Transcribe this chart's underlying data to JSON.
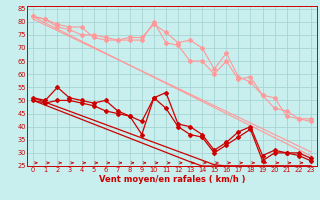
{
  "xlabel": "Vent moyen/en rafales ( km/h )",
  "xlim": [
    -0.5,
    23.5
  ],
  "ylim": [
    25,
    86
  ],
  "yticks": [
    25,
    30,
    35,
    40,
    45,
    50,
    55,
    60,
    65,
    70,
    75,
    80,
    85
  ],
  "xticks": [
    0,
    1,
    2,
    3,
    4,
    5,
    6,
    7,
    8,
    9,
    10,
    11,
    12,
    13,
    14,
    15,
    16,
    17,
    18,
    19,
    20,
    21,
    22,
    23
  ],
  "bg_color": "#c8eeee",
  "grid_color": "#a8d4d4",
  "lc": "#ff9999",
  "dc": "#cc0000",
  "x": [
    0,
    1,
    2,
    3,
    4,
    5,
    6,
    7,
    8,
    9,
    10,
    11,
    12,
    13,
    14,
    15,
    16,
    17,
    18,
    19,
    20,
    21,
    22,
    23
  ],
  "upper1_y": [
    82,
    81,
    79,
    78,
    78,
    74,
    73,
    73,
    74,
    74,
    79,
    76,
    72,
    73,
    70,
    62,
    68,
    59,
    57,
    52,
    51,
    44,
    43,
    43
  ],
  "upper2_y": [
    82,
    81,
    78,
    77,
    75,
    75,
    74,
    73,
    73,
    73,
    80,
    72,
    71,
    65,
    65,
    60,
    65,
    58,
    59,
    52,
    47,
    46,
    43,
    42
  ],
  "trend_upper1": [
    82,
    79.5,
    77.2,
    74.9,
    72.6,
    70.3,
    68.0,
    65.7,
    63.4,
    61.1,
    58.8,
    56.5,
    54.2,
    51.9,
    49.6,
    47.3,
    45.0,
    42.7,
    40.4,
    38.1,
    35.8,
    33.5,
    31.2,
    28.9
  ],
  "trend_upper2": [
    81,
    78.8,
    76.6,
    74.4,
    72.2,
    70.0,
    67.8,
    65.6,
    63.4,
    61.2,
    59.0,
    56.8,
    54.6,
    52.4,
    50.2,
    48.0,
    45.8,
    43.6,
    41.4,
    39.2,
    37.0,
    34.8,
    32.6,
    30.4
  ],
  "lower1_y": [
    51,
    50,
    55,
    51,
    50,
    49,
    50,
    46,
    44,
    37,
    51,
    53,
    41,
    40,
    37,
    31,
    34,
    38,
    40,
    29,
    31,
    30,
    30,
    28
  ],
  "lower2_y": [
    50,
    49,
    50,
    50,
    49,
    48,
    46,
    45,
    44,
    42,
    51,
    47,
    40,
    37,
    36,
    30,
    33,
    36,
    39,
    27,
    30,
    30,
    29,
    27
  ],
  "trend_lower1": [
    51,
    49.3,
    47.6,
    45.9,
    44.2,
    42.5,
    40.8,
    39.1,
    37.4,
    35.7,
    34.0,
    32.3,
    30.6,
    28.9,
    27.2,
    25.5,
    25.0,
    25.0,
    25.0,
    25.0,
    25.0,
    25.0,
    25.0,
    25.0
  ],
  "trend_lower2": [
    50,
    48.2,
    46.4,
    44.6,
    42.8,
    41.0,
    39.2,
    37.4,
    35.6,
    33.8,
    32.0,
    30.2,
    28.4,
    26.6,
    25.0,
    25.0,
    25.0,
    25.0,
    25.0,
    25.0,
    25.0,
    25.0,
    25.0,
    25.0
  ]
}
